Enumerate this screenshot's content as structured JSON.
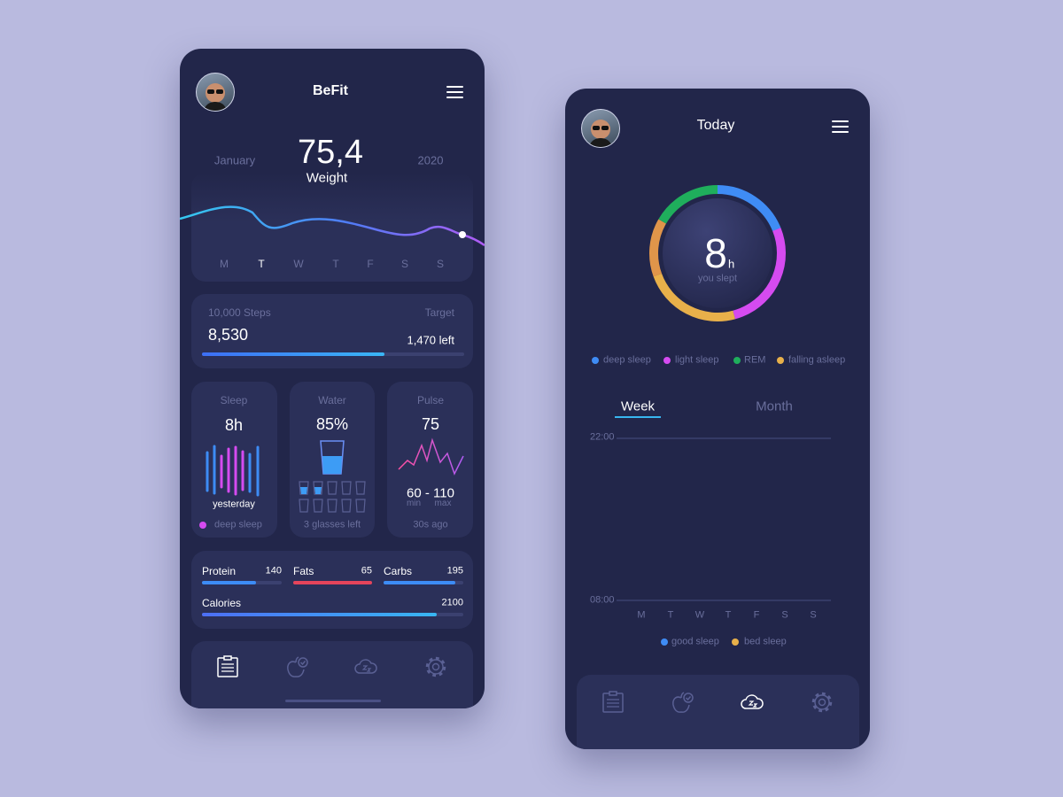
{
  "left_screen": {
    "header": {
      "title": "BeFit"
    },
    "weight": {
      "month": "January",
      "value": "75,4",
      "label": "Weight",
      "year": "2020",
      "days": [
        "M",
        "T",
        "W",
        "T",
        "F",
        "S",
        "S"
      ]
    },
    "steps": {
      "label": "10,000 Steps",
      "target_label": "Target",
      "value": "8,530",
      "left": "1,470 left"
    },
    "sleep_card": {
      "title": "Sleep",
      "value": "8h",
      "caption": "yesterday",
      "legend": "deep sleep"
    },
    "water_card": {
      "title": "Water",
      "value": "85%",
      "caption": "3 glasses left"
    },
    "pulse_card": {
      "title": "Pulse",
      "value": "75",
      "range": "60 - 110",
      "min": "min",
      "max": "max",
      "caption": "30s ago"
    },
    "nutrition": [
      {
        "name": "Protein",
        "value": "140"
      },
      {
        "name": "Fats",
        "value": "65"
      },
      {
        "name": "Carbs",
        "value": "195"
      },
      {
        "name": "Calories",
        "value": "2100"
      }
    ]
  },
  "right_screen": {
    "header": {
      "title": "Today"
    },
    "summary": {
      "value": "8",
      "unit": "h",
      "caption": "you slept"
    },
    "phase_legend": [
      "deep sleep",
      "light sleep",
      "REM",
      "falling asleep"
    ],
    "tabs": [
      "Week",
      "Month"
    ],
    "chart": {
      "time_labels": [
        "22:00",
        "08:00"
      ],
      "days": [
        "M",
        "T",
        "W",
        "T",
        "F",
        "S",
        "S"
      ],
      "legend": [
        "good sleep",
        "bed sleep"
      ]
    }
  }
}
